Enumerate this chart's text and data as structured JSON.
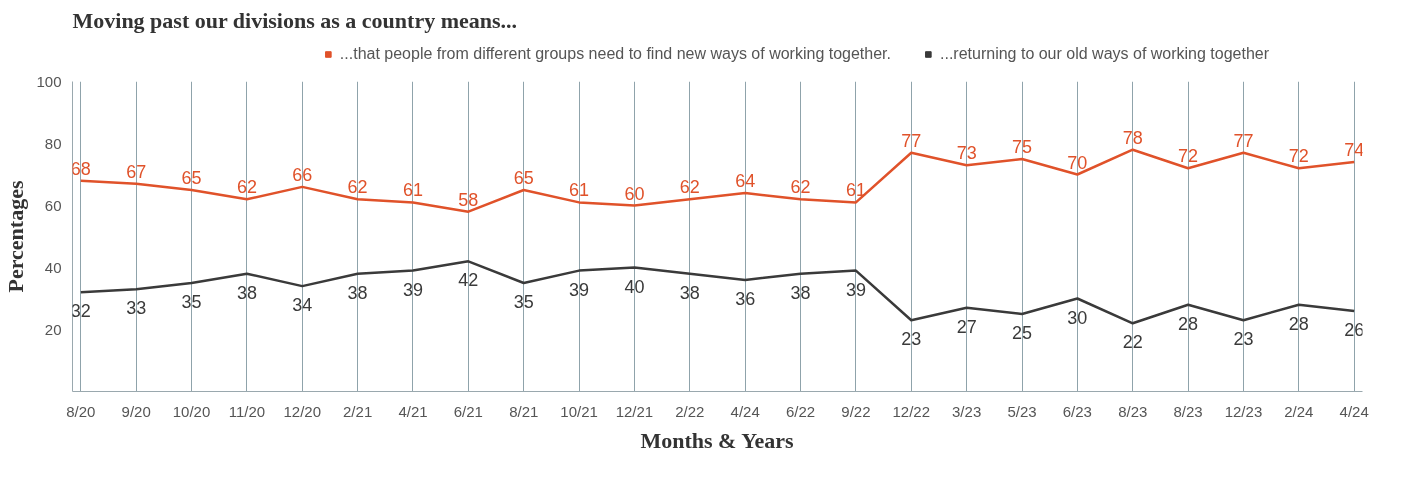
{
  "chart_data": {
    "type": "line",
    "title": "Moving past our divisions as a country means...",
    "xlabel": "Months & Years",
    "ylabel": "Percentages",
    "categories": [
      "8/20",
      "9/20",
      "10/20",
      "11/20",
      "12/20",
      "2/21",
      "4/21",
      "6/21",
      "8/21",
      "10/21",
      "12/21",
      "2/22",
      "4/24",
      "6/22",
      "9/22",
      "12/22",
      "3/23",
      "5/23",
      "6/23",
      "8/23",
      "8/23",
      "12/23",
      "2/24",
      "4/24"
    ],
    "series": [
      {
        "name": "...that people from different groups need to find new ways of working together.",
        "color": "#e0522a",
        "values": [
          68,
          67,
          65,
          62,
          66,
          62,
          61,
          58,
          65,
          61,
          60,
          62,
          64,
          62,
          61,
          77,
          73,
          75,
          70,
          78,
          72,
          77,
          72,
          74
        ]
      },
      {
        "name": "...returning to our old ways of working together",
        "color": "#3a3a3a",
        "values": [
          32,
          33,
          35,
          38,
          34,
          38,
          39,
          42,
          35,
          39,
          40,
          38,
          36,
          38,
          39,
          23,
          27,
          25,
          30,
          22,
          28,
          23,
          28,
          26
        ]
      }
    ],
    "ylim": [
      0,
      100
    ],
    "yticks": [
      20,
      40,
      60,
      80,
      100
    ],
    "grid": "x",
    "legend": "top",
    "data_labels": true,
    "line_style": "solid"
  }
}
